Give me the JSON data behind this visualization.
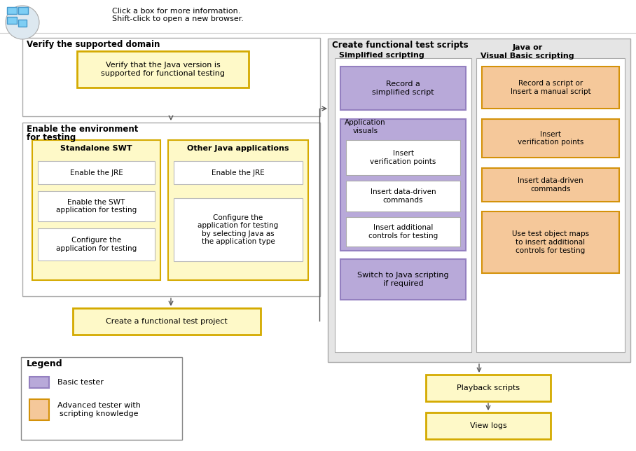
{
  "bg_color": "#ffffff",
  "header_text1": "Click a box for more information.",
  "header_text2": "Shift-click to open a new browser.",
  "section1_title": "Verify the supported domain",
  "box_verify": "Verify that the Java version is\nsupported for functional testing",
  "section2_title_line1": "Enable the environment",
  "section2_title_line2": "for testing",
  "box_standalone_title": "Standalone SWT",
  "box_standalone_items": [
    "Enable the JRE",
    "Enable the SWT\napplication for testing",
    "Configure the\napplication for testing"
  ],
  "box_other_title": "Other Java applications",
  "box_other_items": [
    "Enable the JRE",
    "Configure the\napplication for testing\nby selecting Java as\nthe application type"
  ],
  "box_project": "Create a functional test project",
  "section3_title": "Create functional test scripts",
  "col1_title": "Simplified scripting",
  "col2_title": "Java or\nVisual Basic scripting",
  "purple_box1": "Record a\nsimplified script",
  "purple_group_label": "Application\nvisuals",
  "white_box1": "Insert\nverification points",
  "white_box2": "Insert data-driven\ncommands",
  "white_box3": "Insert additional\ncontrols for testing",
  "purple_box2": "Switch to Java scripting\nif required",
  "orange_box1": "Record a script or\nInsert a manual script",
  "orange_box2": "Insert\nverification points",
  "orange_box3": "Insert data-driven\ncommands",
  "orange_box4": "Use test object maps\nto insert additional\ncontrols for testing",
  "box_playback": "Playback scripts",
  "box_logs": "View logs",
  "legend_title": "Legend",
  "legend_purple": "Basic tester",
  "legend_orange": "Advanced tester with\nscripting knowledge",
  "color_purple": "#b8a9d9",
  "color_purple_border": "#9480c0",
  "color_orange": "#f5c89a",
  "color_orange_border": "#d4920a",
  "color_yellow_fill": "#fef9c8",
  "color_yellow_border": "#d4aa00",
  "color_gray_bg": "#e5e5e5",
  "color_gray_border": "#999999",
  "color_white": "#ffffff",
  "color_arrow": "#555555",
  "color_text": "#000000"
}
